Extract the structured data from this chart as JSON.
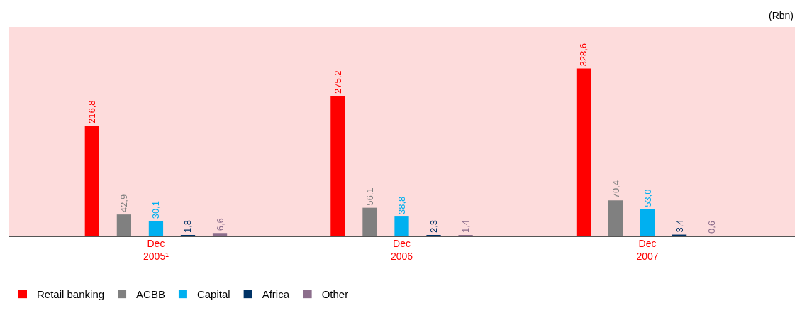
{
  "chart_data": {
    "type": "bar",
    "categories": [
      "Dec 2005¹",
      "Dec 2006",
      "Dec 2007"
    ],
    "series": [
      {
        "name": "Retail banking",
        "color": "#ff0000",
        "values": [
          216.8,
          275.2,
          328.6
        ],
        "value_labels": [
          "216,8",
          "275,2",
          "328,6"
        ]
      },
      {
        "name": "ACBB",
        "color": "#808080",
        "values": [
          42.9,
          56.1,
          70.4
        ],
        "value_labels": [
          "42,9",
          "56,1",
          "70,4"
        ]
      },
      {
        "name": "Capital",
        "color": "#00b0f0",
        "values": [
          30.1,
          38.8,
          53.0
        ],
        "value_labels": [
          "30,1",
          "38,8",
          "53,0"
        ]
      },
      {
        "name": "Africa",
        "color": "#003366",
        "values": [
          1.8,
          2.3,
          3.4
        ],
        "value_labels": [
          "1,8",
          "2,3",
          "3,4"
        ]
      },
      {
        "name": "Other",
        "color": "#8c6e8c",
        "values": [
          6.6,
          1.4,
          0.6
        ],
        "value_labels": [
          "6,6",
          "1,4",
          "0,6"
        ]
      }
    ],
    "ylim": [
      0,
      410
    ],
    "tick_labels": "x",
    "grid": false,
    "legend": "bottom left",
    "annotations": [
      "(Rbn)"
    ]
  }
}
